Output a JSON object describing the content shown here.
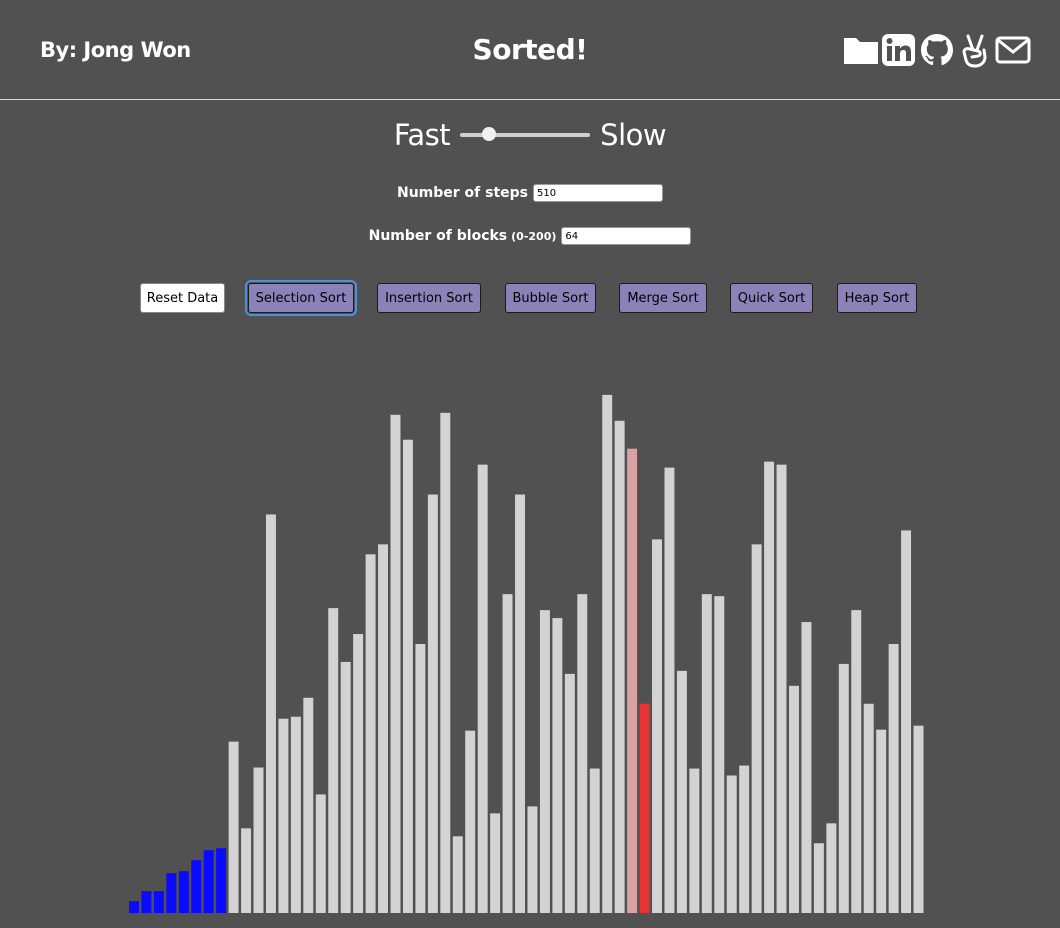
{
  "header": {
    "author": "By: Jong Won",
    "title": "Sorted!",
    "icons": [
      "folder-icon",
      "linkedin-icon",
      "github-icon",
      "angellist-icon",
      "mail-icon"
    ]
  },
  "speed": {
    "fast_label": "Fast",
    "slow_label": "Slow",
    "value": 0.22
  },
  "steps": {
    "label": "Number of steps",
    "value": "510"
  },
  "blocks": {
    "label": "Number of blocks",
    "range_hint": "(0-200)",
    "value": "64"
  },
  "buttons": {
    "reset": "Reset Data",
    "selection": "Selection Sort",
    "insertion": "Insertion Sort",
    "bubble": "Bubble Sort",
    "merge": "Merge Sort",
    "quick": "Quick Sort",
    "heap": "Heap Sort"
  },
  "colors": {
    "sorted": "#0a0aff",
    "default": "#d3d3d3",
    "comparing": "#e63434",
    "current_min": "#d9a3a3",
    "background": "#515151"
  },
  "chart_data": {
    "type": "bar",
    "max_value": 550,
    "values": [
      12,
      22,
      22,
      40,
      42,
      53,
      63,
      65,
      172,
      85,
      146,
      400,
      195,
      197,
      216,
      119,
      306,
      252,
      280,
      360,
      370,
      500,
      475,
      270,
      420,
      502,
      77,
      183,
      450,
      100,
      320,
      420,
      107,
      304,
      296,
      240,
      320,
      145,
      520,
      494,
      466,
      210,
      375,
      447,
      243,
      145,
      320,
      318,
      138,
      148,
      370,
      453,
      450,
      228,
      292,
      70,
      90,
      250,
      304,
      210,
      184,
      270,
      384,
      188
    ],
    "states": [
      "sorted",
      "sorted",
      "sorted",
      "sorted",
      "sorted",
      "sorted",
      "sorted",
      "sorted",
      "default",
      "default",
      "default",
      "default",
      "default",
      "default",
      "default",
      "default",
      "default",
      "default",
      "default",
      "default",
      "default",
      "default",
      "default",
      "default",
      "default",
      "default",
      "default",
      "default",
      "default",
      "default",
      "default",
      "default",
      "default",
      "default",
      "default",
      "default",
      "default",
      "default",
      "default",
      "default",
      "current_min",
      "comparing",
      "default",
      "default",
      "default",
      "default",
      "default",
      "default",
      "default",
      "default",
      "default",
      "default",
      "default",
      "default",
      "default",
      "default",
      "default",
      "default",
      "default",
      "default",
      "default",
      "default",
      "default",
      "default"
    ]
  }
}
